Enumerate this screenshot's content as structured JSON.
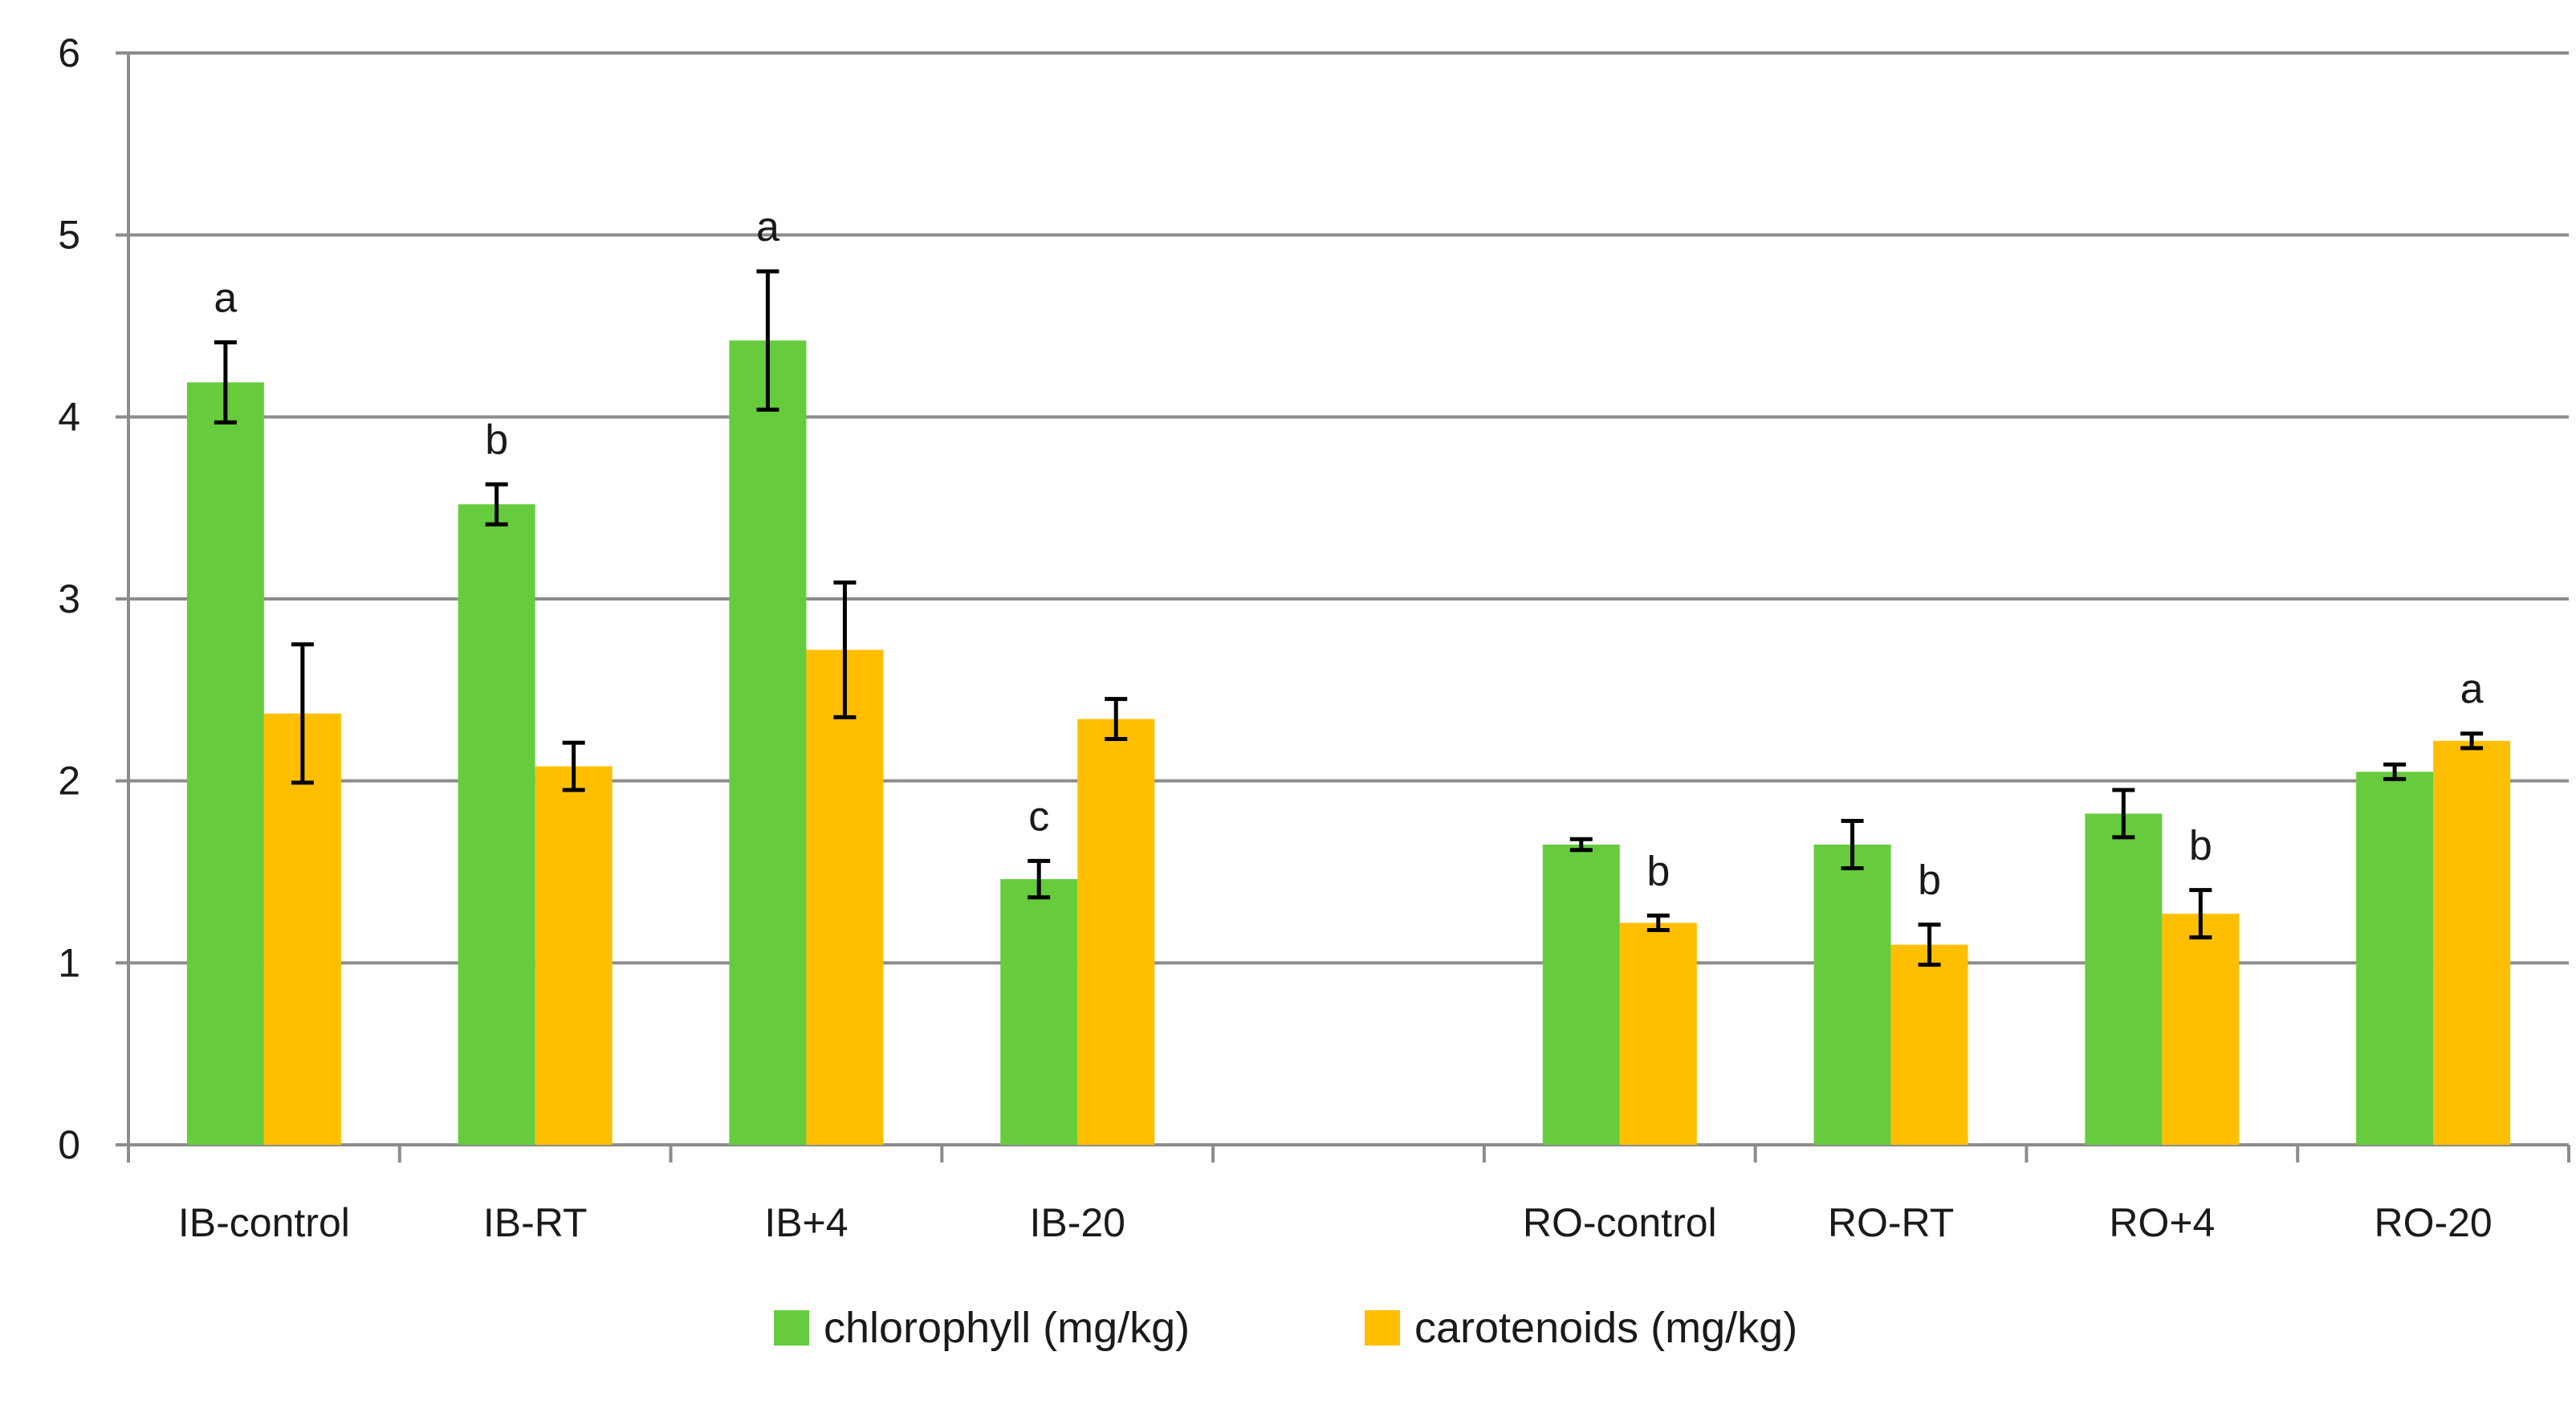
{
  "chart_data": {
    "type": "bar",
    "title": "",
    "xlabel": "",
    "ylabel": "",
    "ylim": [
      0,
      6
    ],
    "yticks": [
      0,
      1,
      2,
      3,
      4,
      5,
      6
    ],
    "grid": true,
    "legend_position": "bottom",
    "categories": [
      "IB-control",
      "IB-RT",
      "IB+4",
      "IB-20",
      "",
      "RO-control",
      "RO-RT",
      "RO+4",
      "RO-20"
    ],
    "series": [
      {
        "name": "chlorophyll (mg/kg)",
        "color": "#66cc3d",
        "values": [
          4.19,
          3.52,
          4.42,
          1.46,
          null,
          1.65,
          1.65,
          1.82,
          2.05
        ],
        "errors": [
          0.22,
          0.11,
          0.38,
          0.1,
          null,
          0.03,
          0.13,
          0.13,
          0.04
        ],
        "labels": [
          "a",
          "b",
          "a",
          "c",
          "",
          "",
          "",
          "",
          ""
        ]
      },
      {
        "name": "carotenoids (mg/kg)",
        "color": "#ffbf00",
        "values": [
          2.37,
          2.08,
          2.72,
          2.34,
          null,
          1.22,
          1.1,
          1.27,
          2.22
        ],
        "errors": [
          0.38,
          0.13,
          0.37,
          0.11,
          null,
          0.04,
          0.11,
          0.13,
          0.04
        ],
        "labels": [
          "",
          "",
          "",
          "",
          "",
          "b",
          "b",
          "b",
          "a"
        ]
      }
    ]
  }
}
